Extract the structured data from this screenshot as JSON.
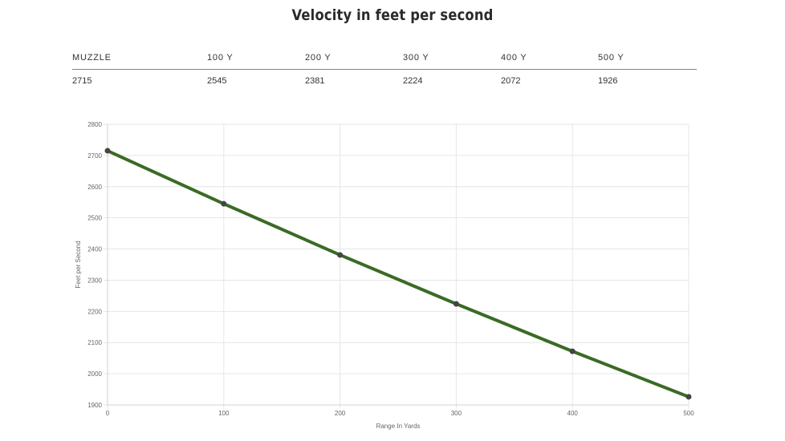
{
  "title": "Velocity in feet per second",
  "table": {
    "headers": [
      "MUZZLE",
      "100 Y",
      "200 Y",
      "300 Y",
      "400 Y",
      "500 Y"
    ],
    "values": [
      "2715",
      "2545",
      "2381",
      "2224",
      "2072",
      "1926"
    ]
  },
  "chart_data": {
    "type": "line",
    "xlabel": "Range In Yards",
    "ylabel": "Feet per Second",
    "x": [
      0,
      100,
      200,
      300,
      400,
      500
    ],
    "series": [
      {
        "values": [
          2715,
          2545,
          2381,
          2224,
          2072,
          1926
        ]
      }
    ],
    "xlim": [
      0,
      500
    ],
    "ylim": [
      1900,
      2800
    ],
    "xticks": [
      "0",
      "100",
      "200",
      "300",
      "400",
      "500"
    ],
    "yticks": [
      "1900",
      "2000",
      "2100",
      "2200",
      "2300",
      "2400",
      "2500",
      "2600",
      "2700",
      "2800"
    ],
    "grid": true,
    "legend": "none",
    "line_color": "#3a6b25",
    "point_color": "#444444"
  }
}
